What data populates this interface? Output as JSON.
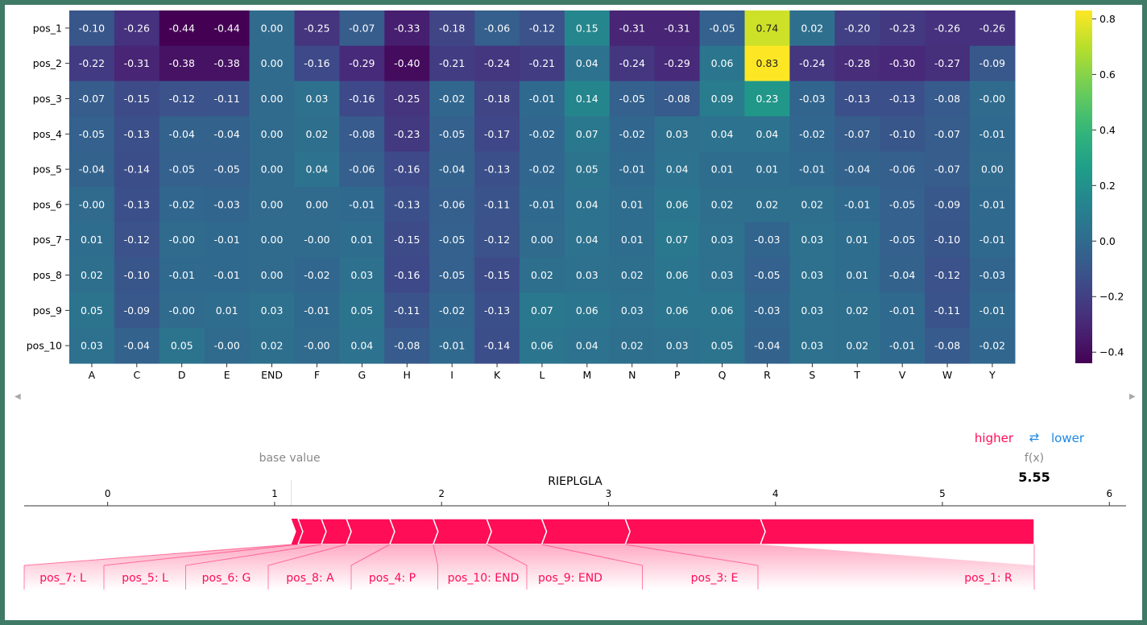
{
  "chart_data": [
    {
      "type": "heatmap",
      "rows": [
        "pos_1",
        "pos_2",
        "pos_3",
        "pos_4",
        "pos_5",
        "pos_6",
        "pos_7",
        "pos_8",
        "pos_9",
        "pos_10"
      ],
      "columns": [
        "A",
        "C",
        "D",
        "E",
        "END",
        "F",
        "G",
        "H",
        "I",
        "K",
        "L",
        "M",
        "N",
        "P",
        "Q",
        "R",
        "S",
        "T",
        "V",
        "W",
        "Y"
      ],
      "values": [
        [
          "-0.10",
          "-0.26",
          "-0.44",
          "-0.44",
          "0.00",
          "-0.25",
          "-0.07",
          "-0.33",
          "-0.18",
          "-0.06",
          "-0.12",
          "0.15",
          "-0.31",
          "-0.31",
          "-0.05",
          "0.74",
          "0.02",
          "-0.20",
          "-0.23",
          "-0.26",
          "-0.26"
        ],
        [
          "-0.22",
          "-0.31",
          "-0.38",
          "-0.38",
          "0.00",
          "-0.16",
          "-0.29",
          "-0.40",
          "-0.21",
          "-0.24",
          "-0.21",
          "0.04",
          "-0.24",
          "-0.29",
          "0.06",
          "0.83",
          "-0.24",
          "-0.28",
          "-0.30",
          "-0.27",
          "-0.09"
        ],
        [
          "-0.07",
          "-0.15",
          "-0.12",
          "-0.11",
          "0.00",
          "0.03",
          "-0.16",
          "-0.25",
          "-0.02",
          "-0.18",
          "-0.01",
          "0.14",
          "-0.05",
          "-0.08",
          "0.09",
          "0.23",
          "-0.03",
          "-0.13",
          "-0.13",
          "-0.08",
          "-0.00"
        ],
        [
          "-0.05",
          "-0.13",
          "-0.04",
          "-0.04",
          "0.00",
          "0.02",
          "-0.08",
          "-0.23",
          "-0.05",
          "-0.17",
          "-0.02",
          "0.07",
          "-0.02",
          "0.03",
          "0.04",
          "0.04",
          "-0.02",
          "-0.07",
          "-0.10",
          "-0.07",
          "-0.01"
        ],
        [
          "-0.04",
          "-0.14",
          "-0.05",
          "-0.05",
          "0.00",
          "0.04",
          "-0.06",
          "-0.16",
          "-0.04",
          "-0.13",
          "-0.02",
          "0.05",
          "-0.01",
          "0.04",
          "0.01",
          "0.01",
          "-0.01",
          "-0.04",
          "-0.06",
          "-0.07",
          "0.00"
        ],
        [
          "-0.00",
          "-0.13",
          "-0.02",
          "-0.03",
          "0.00",
          "0.00",
          "-0.01",
          "-0.13",
          "-0.06",
          "-0.11",
          "-0.01",
          "0.04",
          "0.01",
          "0.06",
          "0.02",
          "0.02",
          "0.02",
          "-0.01",
          "-0.05",
          "-0.09",
          "-0.01"
        ],
        [
          "0.01",
          "-0.12",
          "-0.00",
          "-0.01",
          "0.00",
          "-0.00",
          "0.01",
          "-0.15",
          "-0.05",
          "-0.12",
          "0.00",
          "0.04",
          "0.01",
          "0.07",
          "0.03",
          "-0.03",
          "0.03",
          "0.01",
          "-0.05",
          "-0.10",
          "-0.01"
        ],
        [
          "0.02",
          "-0.10",
          "-0.01",
          "-0.01",
          "0.00",
          "-0.02",
          "0.03",
          "-0.16",
          "-0.05",
          "-0.15",
          "0.02",
          "0.03",
          "0.02",
          "0.06",
          "0.03",
          "-0.05",
          "0.03",
          "0.01",
          "-0.04",
          "-0.12",
          "-0.03"
        ],
        [
          "0.05",
          "-0.09",
          "-0.00",
          "0.01",
          "0.03",
          "-0.01",
          "0.05",
          "-0.11",
          "-0.02",
          "-0.13",
          "0.07",
          "0.06",
          "0.03",
          "0.06",
          "0.06",
          "-0.03",
          "0.03",
          "0.02",
          "-0.01",
          "-0.11",
          "-0.01"
        ],
        [
          "0.03",
          "-0.04",
          "0.05",
          "-0.00",
          "0.02",
          "-0.00",
          "0.04",
          "-0.08",
          "-0.01",
          "-0.14",
          "0.06",
          "0.04",
          "0.02",
          "0.03",
          "0.05",
          "-0.04",
          "0.03",
          "0.02",
          "-0.01",
          "-0.08",
          "-0.02"
        ]
      ],
      "colormap": "viridis",
      "vmin": -0.44,
      "vmax": 0.83,
      "colorbar_ticks": [
        "0.8",
        "0.6",
        "0.4",
        "0.2",
        "0.0",
        "−0.2",
        "−0.4"
      ]
    },
    {
      "type": "bar",
      "title": "RIEPLGLA",
      "legend_higher": "higher",
      "legend_arrows": "⇄",
      "legend_lower": "lower",
      "base_value_label": "base value",
      "base_value": 1.1,
      "fx_label": "f(x)",
      "fx_value": "5.55",
      "fx_numeric": 5.55,
      "xlim": [
        -0.5,
        6.1
      ],
      "ticks": [
        "0",
        "1",
        "2",
        "3",
        "4",
        "5",
        "6"
      ],
      "color": "#ff0d57",
      "label_color": "#ff0d57",
      "higher_color": "#ff0d57",
      "lower_color": "#1e88e5",
      "features": [
        {
          "label": "pos_7: L",
          "start": 1.1,
          "end": 1.14
        },
        {
          "label": "pos_5: L",
          "start": 1.14,
          "end": 1.28
        },
        {
          "label": "pos_6: G",
          "start": 1.28,
          "end": 1.43
        },
        {
          "label": "pos_8: A",
          "start": 1.43,
          "end": 1.69
        },
        {
          "label": "pos_4: P",
          "start": 1.69,
          "end": 1.95
        },
        {
          "label": "pos_10: END",
          "start": 1.95,
          "end": 2.27
        },
        {
          "label": "pos_9: END",
          "start": 2.27,
          "end": 2.6
        },
        {
          "label": "pos_3: E",
          "start": 2.6,
          "end": 3.1
        },
        {
          "label": "pos_1: R",
          "start": 3.1,
          "end": 3.91
        },
        {
          "label": "",
          "start": 3.91,
          "end": 5.55
        }
      ]
    }
  ]
}
